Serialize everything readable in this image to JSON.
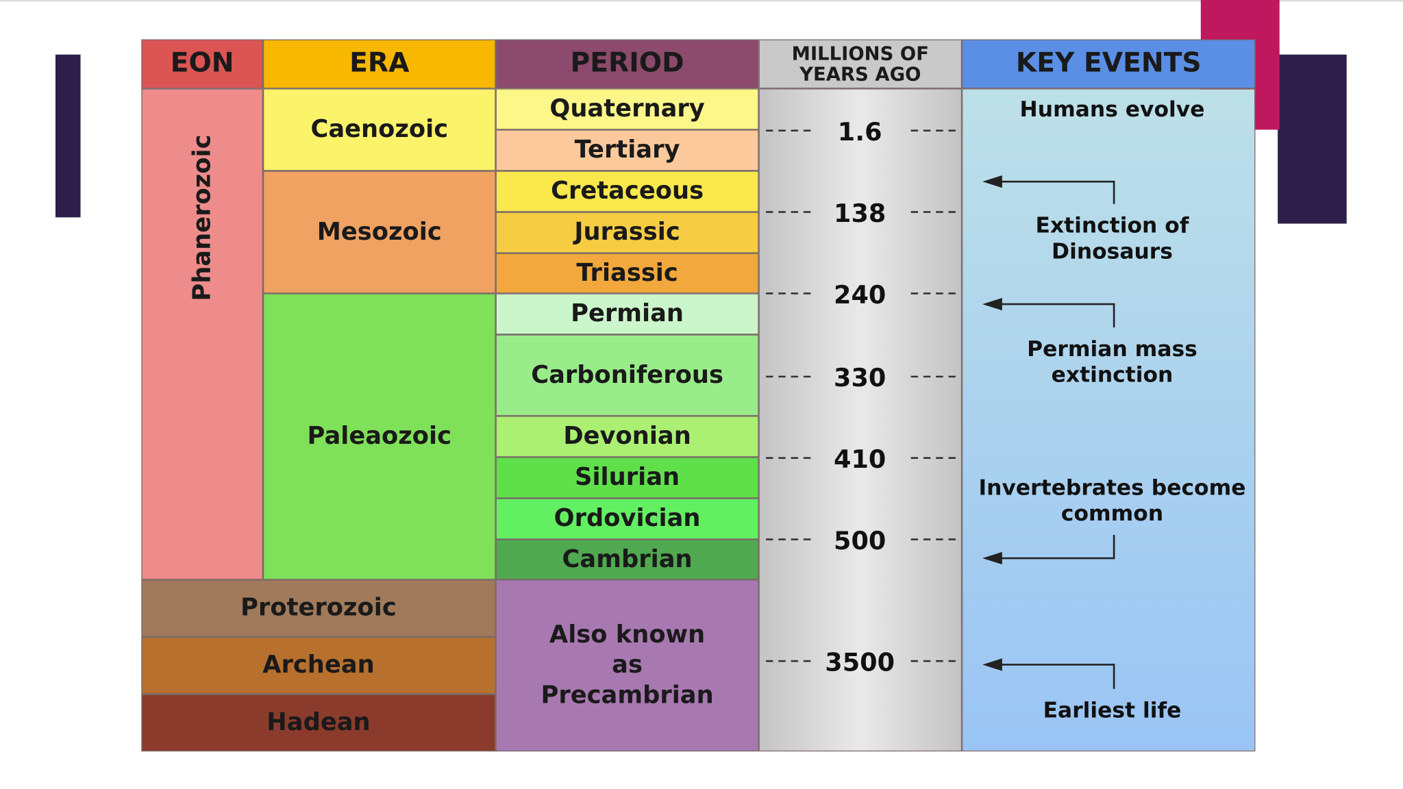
{
  "headers": [
    "EON",
    "ERA",
    "PERIOD",
    "MILLIONS OF YEARS AGO",
    "KEY EVENTS"
  ],
  "eons": [
    "Phanerozoic",
    "Proterozoic",
    "Archean",
    "Hadean"
  ],
  "eras": [
    "Caenozoic",
    "Mesozoic",
    "Paleaozoic"
  ],
  "periods": [
    "Quaternary",
    "Tertiary",
    "Cretaceous",
    "Jurassic",
    "Triassic",
    "Permian",
    "Carboniferous",
    "Devonian",
    "Silurian",
    "Ordovician",
    "Cambrian"
  ],
  "precambrian_note": "Also known as Precambrian",
  "ages": [
    1.6,
    138,
    240,
    330,
    410,
    500,
    3500
  ],
  "events": [
    "Humans evolve",
    "Extinction of Dinosaurs",
    "Permian mass extinction",
    "Invertebrates become common",
    "Earliest life"
  ]
}
